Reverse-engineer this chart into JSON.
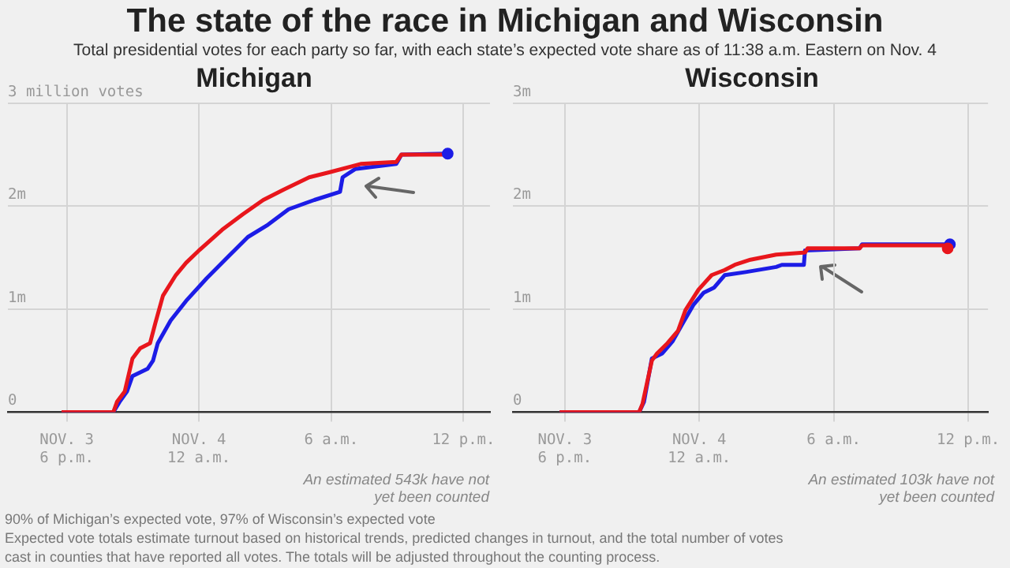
{
  "chart_data": [
    {
      "type": "other",
      "title": "The state of the race in Michigan and Wisconsin",
      "subtitle": "Total presidential votes for each party so far, with each state’s expected vote share as of 11:38 a.m. Eastern on Nov. 4",
      "annotations": [
        "90% of Michigan’s expected vote, 97% of Wisconsin’s expected vote",
        "Expected vote totals estimate turnout based on historical trends, predicted changes in turnout, and the total number of votes cast in counties that have reported all votes. The totals will be adjusted throughout the counting process."
      ]
    },
    {
      "type": "line",
      "title": "Michigan",
      "xlim": [
        "--11-03T15:20",
        "--11-04T13:12"
      ],
      "ylim": [
        0,
        3
      ],
      "xticks": [
        {
          "value": "--11-03T18:00",
          "label": "NOV. 3\n6 p.m."
        },
        {
          "value": "--11-04T00:00",
          "label": "NOV. 4\n12 a.m."
        },
        {
          "value": "--11-04T06:00",
          "label": "6 a.m."
        },
        {
          "value": "--11-04T12:00",
          "label": "12 p.m."
        }
      ],
      "yticks": [
        {
          "value": 0,
          "label": "0"
        },
        {
          "value": 1,
          "label": "1m"
        },
        {
          "value": 2,
          "label": "2m"
        },
        {
          "value": 3,
          "label": "3 million votes"
        }
      ],
      "grid": true,
      "legend": false,
      "annotations": [
        "An estimated 543k have not yet been counted"
      ],
      "series": [
        {
          "color": "#e8161c",
          "x": [
            "--11-03T17:46",
            "--11-03T20:07",
            "--11-03T20:17",
            "--11-03T20:38",
            "--11-03T20:59",
            "--11-03T21:20",
            "--11-03T21:47",
            "--11-03T22:01",
            "--11-03T22:22",
            "--11-03T22:57",
            "--11-03T23:25",
            "--11-04T00:00",
            "--11-04T01:03",
            "--11-04T01:59",
            "--11-04T02:55",
            "--11-04T03:50",
            "--11-04T05:00",
            "--11-04T05:56",
            "--11-04T07:20",
            "--11-04T08:57",
            "--11-04T09:11",
            "--11-04T11:17"
          ],
          "values": [
            0,
            0,
            0.1,
            0.2,
            0.52,
            0.62,
            0.67,
            0.86,
            1.13,
            1.33,
            1.45,
            1.57,
            1.77,
            1.92,
            2.06,
            2.16,
            2.28,
            2.33,
            2.41,
            2.43,
            2.5,
            2.5
          ]
        },
        {
          "color": "#1c1ce6",
          "x": [
            "--11-03T17:46",
            "--11-03T20:07",
            "--11-03T20:24",
            "--11-03T20:44",
            "--11-03T20:59",
            "--11-03T21:40",
            "--11-03T21:55",
            "--11-03T22:08",
            "--11-03T22:43",
            "--11-03T23:25",
            "--11-04T00:21",
            "--11-04T01:17",
            "--11-04T02:13",
            "--11-04T03:08",
            "--11-04T04:04",
            "--11-04T05:14",
            "--11-04T06:24",
            "--11-04T06:31",
            "--11-04T07:05",
            "--11-04T08:57",
            "--11-04T09:11",
            "--11-04T11:17"
          ],
          "values": [
            0,
            0,
            0.1,
            0.2,
            0.35,
            0.42,
            0.5,
            0.67,
            0.89,
            1.08,
            1.3,
            1.5,
            1.7,
            1.82,
            1.97,
            2.06,
            2.14,
            2.28,
            2.36,
            2.41,
            2.5,
            2.51
          ]
        },
        {
          "type": "scatter",
          "color": "#1c1ce6",
          "x": [
            "--11-04T11:17"
          ],
          "values": [
            2.51
          ]
        }
      ]
    },
    {
      "type": "line",
      "title": "Wisconsin",
      "xlim": [
        "--11-03T15:41",
        "--11-04T12:53"
      ],
      "ylim": [
        0,
        3
      ],
      "xticks": [
        {
          "value": "--11-03T18:00",
          "label": "NOV. 3\n6 p.m."
        },
        {
          "value": "--11-04T00:00",
          "label": "NOV. 4\n12 a.m."
        },
        {
          "value": "--11-04T06:00",
          "label": "6 a.m."
        },
        {
          "value": "--11-04T12:00",
          "label": "12 p.m."
        }
      ],
      "yticks": [
        {
          "value": 0,
          "label": "0"
        },
        {
          "value": 1,
          "label": "1m"
        },
        {
          "value": 2,
          "label": "2m"
        },
        {
          "value": 3,
          "label": "3m"
        }
      ],
      "grid": true,
      "legend": false,
      "annotations": [
        "An estimated 103k have not yet been counted"
      ],
      "series": [
        {
          "color": "#e8161c",
          "x": [
            "--11-03T17:46",
            "--11-03T21:19",
            "--11-03T21:28",
            "--11-03T21:53",
            "--11-03T22:07",
            "--11-03T22:35",
            "--11-03T23:03",
            "--11-03T23:23",
            "--11-03T23:58",
            "--11-04T00:33",
            "--11-04T01:08",
            "--11-04T01:35",
            "--11-04T02:17",
            "--11-04T03:26",
            "--11-04T04:43",
            "--11-04T04:50",
            "--11-04T07:09",
            "--11-04T07:16",
            "--11-04T11:05"
          ],
          "values": [
            0,
            0,
            0.08,
            0.5,
            0.57,
            0.67,
            0.79,
            0.99,
            1.19,
            1.33,
            1.38,
            1.43,
            1.48,
            1.53,
            1.55,
            1.59,
            1.59,
            1.62,
            1.62
          ]
        },
        {
          "color": "#1c1ce6",
          "x": [
            "--11-03T17:46",
            "--11-03T21:19",
            "--11-03T21:32",
            "--11-03T21:53",
            "--11-03T22:21",
            "--11-03T22:49",
            "--11-03T23:17",
            "--11-03T23:44",
            "--11-04T00:12",
            "--11-04T00:40",
            "--11-04T01:08",
            "--11-04T02:04",
            "--11-04T03:26",
            "--11-04T03:41",
            "--11-04T04:40",
            "--11-04T04:43",
            "--11-04T07:09",
            "--11-04T07:16",
            "--11-04T11:11"
          ],
          "values": [
            0,
            0,
            0.1,
            0.52,
            0.57,
            0.69,
            0.87,
            1.04,
            1.16,
            1.21,
            1.33,
            1.36,
            1.41,
            1.43,
            1.43,
            1.57,
            1.59,
            1.63,
            1.63
          ]
        },
        {
          "type": "scatter",
          "color": "#e8161c",
          "x": [
            "--11-04T11:05"
          ],
          "values": [
            1.59
          ]
        },
        {
          "type": "scatter",
          "color": "#1c1ce6",
          "x": [
            "--11-04T11:11"
          ],
          "values": [
            1.63
          ]
        }
      ]
    }
  ]
}
